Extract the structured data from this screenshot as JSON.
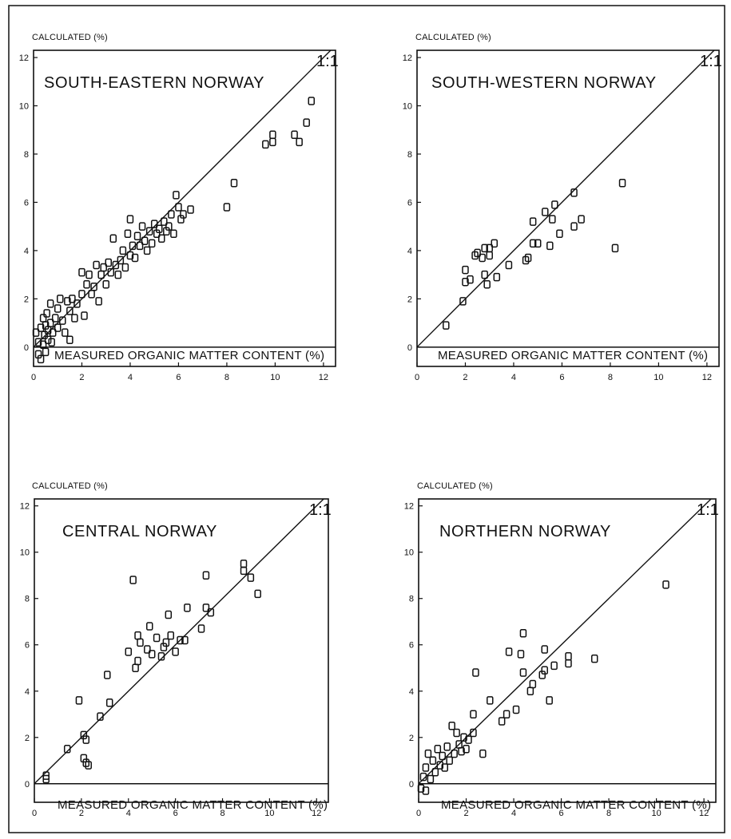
{
  "chart_data": [
    {
      "type": "scatter",
      "title": "SOUTH-EASTERN NORWAY",
      "xlabel": "MEASURED ORGANIC MATTER CONTENT (%)",
      "ylabel": "CALCULATED (%)",
      "xlim": [
        0,
        12.5
      ],
      "ylim": [
        -0.8,
        12.3
      ],
      "xticks": [
        0,
        2,
        4,
        6,
        8,
        10,
        12
      ],
      "yticks": [
        0,
        2,
        4,
        6,
        8,
        10,
        12
      ],
      "reference_line": {
        "label": "1:1",
        "slope": 1
      },
      "zero_line": true,
      "grid": false,
      "points": [
        [
          0.1,
          0.6
        ],
        [
          0.2,
          -0.3
        ],
        [
          0.2,
          0.2
        ],
        [
          0.3,
          0.8
        ],
        [
          0.3,
          -0.5
        ],
        [
          0.4,
          0.1
        ],
        [
          0.4,
          1.2
        ],
        [
          0.45,
          0.5
        ],
        [
          0.5,
          -0.2
        ],
        [
          0.5,
          0.9
        ],
        [
          0.55,
          1.4
        ],
        [
          0.6,
          0.3
        ],
        [
          0.6,
          0.7
        ],
        [
          0.7,
          1.0
        ],
        [
          0.7,
          1.8
        ],
        [
          0.75,
          0.2
        ],
        [
          0.8,
          0.6
        ],
        [
          0.9,
          1.2
        ],
        [
          1.0,
          0.8
        ],
        [
          1.0,
          1.6
        ],
        [
          1.1,
          2.0
        ],
        [
          1.2,
          1.1
        ],
        [
          1.3,
          0.6
        ],
        [
          1.4,
          1.9
        ],
        [
          1.5,
          0.3
        ],
        [
          1.5,
          1.5
        ],
        [
          1.6,
          2.0
        ],
        [
          1.7,
          1.2
        ],
        [
          1.8,
          1.8
        ],
        [
          2.0,
          2.2
        ],
        [
          2.0,
          3.1
        ],
        [
          2.1,
          1.3
        ],
        [
          2.2,
          2.6
        ],
        [
          2.3,
          3.0
        ],
        [
          2.4,
          2.2
        ],
        [
          2.5,
          2.5
        ],
        [
          2.6,
          3.4
        ],
        [
          2.7,
          1.9
        ],
        [
          2.8,
          3.0
        ],
        [
          2.9,
          3.3
        ],
        [
          3.0,
          2.6
        ],
        [
          3.1,
          3.5
        ],
        [
          3.2,
          3.1
        ],
        [
          3.3,
          4.5
        ],
        [
          3.4,
          3.4
        ],
        [
          3.5,
          3.0
        ],
        [
          3.6,
          3.6
        ],
        [
          3.7,
          4.0
        ],
        [
          3.8,
          3.3
        ],
        [
          3.9,
          4.7
        ],
        [
          4.0,
          3.8
        ],
        [
          4.0,
          5.3
        ],
        [
          4.1,
          4.2
        ],
        [
          4.2,
          3.7
        ],
        [
          4.3,
          4.6
        ],
        [
          4.4,
          4.2
        ],
        [
          4.5,
          5.0
        ],
        [
          4.6,
          4.4
        ],
        [
          4.7,
          4.0
        ],
        [
          4.8,
          4.8
        ],
        [
          4.9,
          4.3
        ],
        [
          5.0,
          5.1
        ],
        [
          5.1,
          4.7
        ],
        [
          5.2,
          4.9
        ],
        [
          5.3,
          4.5
        ],
        [
          5.4,
          5.2
        ],
        [
          5.5,
          4.8
        ],
        [
          5.6,
          5.0
        ],
        [
          5.7,
          5.5
        ],
        [
          5.8,
          4.7
        ],
        [
          5.9,
          6.3
        ],
        [
          6.0,
          5.8
        ],
        [
          6.1,
          5.3
        ],
        [
          6.2,
          5.5
        ],
        [
          6.5,
          5.7
        ],
        [
          8.0,
          5.8
        ],
        [
          8.3,
          6.8
        ],
        [
          9.6,
          8.4
        ],
        [
          9.9,
          8.5
        ],
        [
          9.9,
          8.8
        ],
        [
          10.8,
          8.8
        ],
        [
          11.0,
          8.5
        ],
        [
          11.3,
          9.3
        ],
        [
          11.5,
          10.2
        ]
      ]
    },
    {
      "type": "scatter",
      "title": "SOUTH-WESTERN NORWAY",
      "xlabel": "MEASURED ORGANIC MATTER CONTENT (%)",
      "ylabel": "CALCULATED (%)",
      "xlim": [
        0,
        12.5
      ],
      "ylim": [
        -0.8,
        12.3
      ],
      "xticks": [
        0,
        2,
        4,
        6,
        8,
        10,
        12
      ],
      "yticks": [
        0,
        2,
        4,
        6,
        8,
        10,
        12
      ],
      "reference_line": {
        "label": "1:1",
        "slope": 1
      },
      "zero_line": true,
      "grid": false,
      "points": [
        [
          1.2,
          0.9
        ],
        [
          1.9,
          1.9
        ],
        [
          2.0,
          3.2
        ],
        [
          2.0,
          2.7
        ],
        [
          2.2,
          2.8
        ],
        [
          2.4,
          3.8
        ],
        [
          2.5,
          3.9
        ],
        [
          2.7,
          3.7
        ],
        [
          2.8,
          4.1
        ],
        [
          2.8,
          3.0
        ],
        [
          2.9,
          2.6
        ],
        [
          3.0,
          3.8
        ],
        [
          3.0,
          4.1
        ],
        [
          3.2,
          4.3
        ],
        [
          3.3,
          2.9
        ],
        [
          3.8,
          3.4
        ],
        [
          4.5,
          3.6
        ],
        [
          4.6,
          3.7
        ],
        [
          4.8,
          4.3
        ],
        [
          4.8,
          5.2
        ],
        [
          5.0,
          4.3
        ],
        [
          5.3,
          5.6
        ],
        [
          5.5,
          4.2
        ],
        [
          5.6,
          5.3
        ],
        [
          5.7,
          5.9
        ],
        [
          5.9,
          4.7
        ],
        [
          6.5,
          5.0
        ],
        [
          6.5,
          6.4
        ],
        [
          6.8,
          5.3
        ],
        [
          8.2,
          4.1
        ],
        [
          8.5,
          6.8
        ]
      ]
    },
    {
      "type": "scatter",
      "title": "CENTRAL NORWAY",
      "xlabel": "MEASURED ORGANIC MATTER CONTENT (%)",
      "ylabel": "CALCULATED (%)",
      "xlim": [
        0,
        12.5
      ],
      "ylim": [
        -0.8,
        12.3
      ],
      "xticks": [
        0,
        2,
        4,
        6,
        8,
        10,
        12
      ],
      "yticks": [
        0,
        2,
        4,
        6,
        8,
        10,
        12
      ],
      "reference_line": {
        "label": "1:1",
        "slope": 1
      },
      "zero_line": true,
      "grid": false,
      "points": [
        [
          0.5,
          0.2
        ],
        [
          0.5,
          0.35
        ],
        [
          1.4,
          1.5
        ],
        [
          1.9,
          3.6
        ],
        [
          2.1,
          1.1
        ],
        [
          2.1,
          2.1
        ],
        [
          2.2,
          0.9
        ],
        [
          2.2,
          1.9
        ],
        [
          2.3,
          0.8
        ],
        [
          2.8,
          2.9
        ],
        [
          3.1,
          4.7
        ],
        [
          3.2,
          3.5
        ],
        [
          4.0,
          5.7
        ],
        [
          4.2,
          8.8
        ],
        [
          4.3,
          5.0
        ],
        [
          4.4,
          6.4
        ],
        [
          4.4,
          5.3
        ],
        [
          4.5,
          6.1
        ],
        [
          4.8,
          5.8
        ],
        [
          4.9,
          6.8
        ],
        [
          5.0,
          5.6
        ],
        [
          5.2,
          6.3
        ],
        [
          5.4,
          5.5
        ],
        [
          5.5,
          5.9
        ],
        [
          5.6,
          6.1
        ],
        [
          5.7,
          7.3
        ],
        [
          5.8,
          6.4
        ],
        [
          6.0,
          5.7
        ],
        [
          6.2,
          6.2
        ],
        [
          6.4,
          6.2
        ],
        [
          6.5,
          7.6
        ],
        [
          7.1,
          6.7
        ],
        [
          7.3,
          9.0
        ],
        [
          7.3,
          7.6
        ],
        [
          7.5,
          7.4
        ],
        [
          8.9,
          9.5
        ],
        [
          8.9,
          9.2
        ],
        [
          9.2,
          8.9
        ],
        [
          9.5,
          8.2
        ]
      ]
    },
    {
      "type": "scatter",
      "title": "NORTHERN NORWAY",
      "xlabel": "MEASURED ORGANIC MATTER CONTENT (%)",
      "ylabel": "CALCULATED (%)",
      "xlim": [
        0,
        12.5
      ],
      "ylim": [
        -0.8,
        12.3
      ],
      "xticks": [
        0,
        2,
        4,
        6,
        8,
        10,
        12
      ],
      "yticks": [
        0,
        2,
        4,
        6,
        8,
        10,
        12
      ],
      "reference_line": {
        "label": "1:1",
        "slope": 1
      },
      "zero_line": true,
      "grid": false,
      "points": [
        [
          0.1,
          -0.2
        ],
        [
          0.2,
          0.3
        ],
        [
          0.3,
          -0.3
        ],
        [
          0.3,
          0.7
        ],
        [
          0.4,
          1.3
        ],
        [
          0.5,
          0.2
        ],
        [
          0.6,
          1.0
        ],
        [
          0.7,
          0.5
        ],
        [
          0.8,
          1.5
        ],
        [
          0.9,
          0.8
        ],
        [
          1.0,
          1.2
        ],
        [
          1.1,
          0.7
        ],
        [
          1.2,
          1.6
        ],
        [
          1.3,
          1.0
        ],
        [
          1.4,
          2.5
        ],
        [
          1.5,
          1.3
        ],
        [
          1.6,
          2.2
        ],
        [
          1.7,
          1.7
        ],
        [
          1.8,
          1.4
        ],
        [
          1.9,
          2.0
        ],
        [
          2.0,
          1.5
        ],
        [
          2.1,
          1.9
        ],
        [
          2.3,
          2.2
        ],
        [
          2.3,
          3.0
        ],
        [
          2.4,
          4.8
        ],
        [
          2.7,
          1.3
        ],
        [
          3.0,
          3.6
        ],
        [
          3.5,
          2.7
        ],
        [
          3.7,
          3.0
        ],
        [
          3.8,
          5.7
        ],
        [
          4.1,
          3.2
        ],
        [
          4.3,
          5.6
        ],
        [
          4.4,
          4.8
        ],
        [
          4.4,
          6.5
        ],
        [
          4.7,
          4.0
        ],
        [
          4.8,
          4.3
        ],
        [
          5.2,
          4.7
        ],
        [
          5.3,
          5.8
        ],
        [
          5.3,
          4.9
        ],
        [
          5.5,
          3.6
        ],
        [
          5.7,
          5.1
        ],
        [
          6.3,
          5.2
        ],
        [
          6.3,
          5.5
        ],
        [
          7.4,
          5.4
        ],
        [
          10.4,
          8.6
        ]
      ]
    }
  ]
}
